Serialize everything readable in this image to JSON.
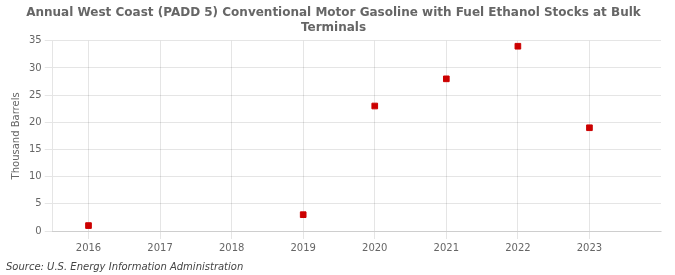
{
  "chart_data": {
    "type": "scatter",
    "title": "Annual West Coast (PADD 5) Conventional Motor Gasoline with Fuel Ethanol Stocks at Bulk\nTerminals",
    "ylabel": "Thousand Barrels",
    "annotations": [
      "Source: U.S. Energy Information Administration"
    ],
    "x": [
      2016,
      2019,
      2020,
      2021,
      2022,
      2023
    ],
    "values": [
      1,
      3,
      23,
      28,
      34,
      19
    ],
    "color": "#cc0000",
    "marker": "square",
    "xlim": [
      2015.5,
      2024.0
    ],
    "xticks": [
      2016,
      2017,
      2018,
      2019,
      2020,
      2021,
      2022,
      2023
    ],
    "ylim": [
      0,
      35
    ],
    "yticks": [
      0,
      5,
      10,
      15,
      20,
      25,
      30,
      35
    ],
    "grid": true
  }
}
